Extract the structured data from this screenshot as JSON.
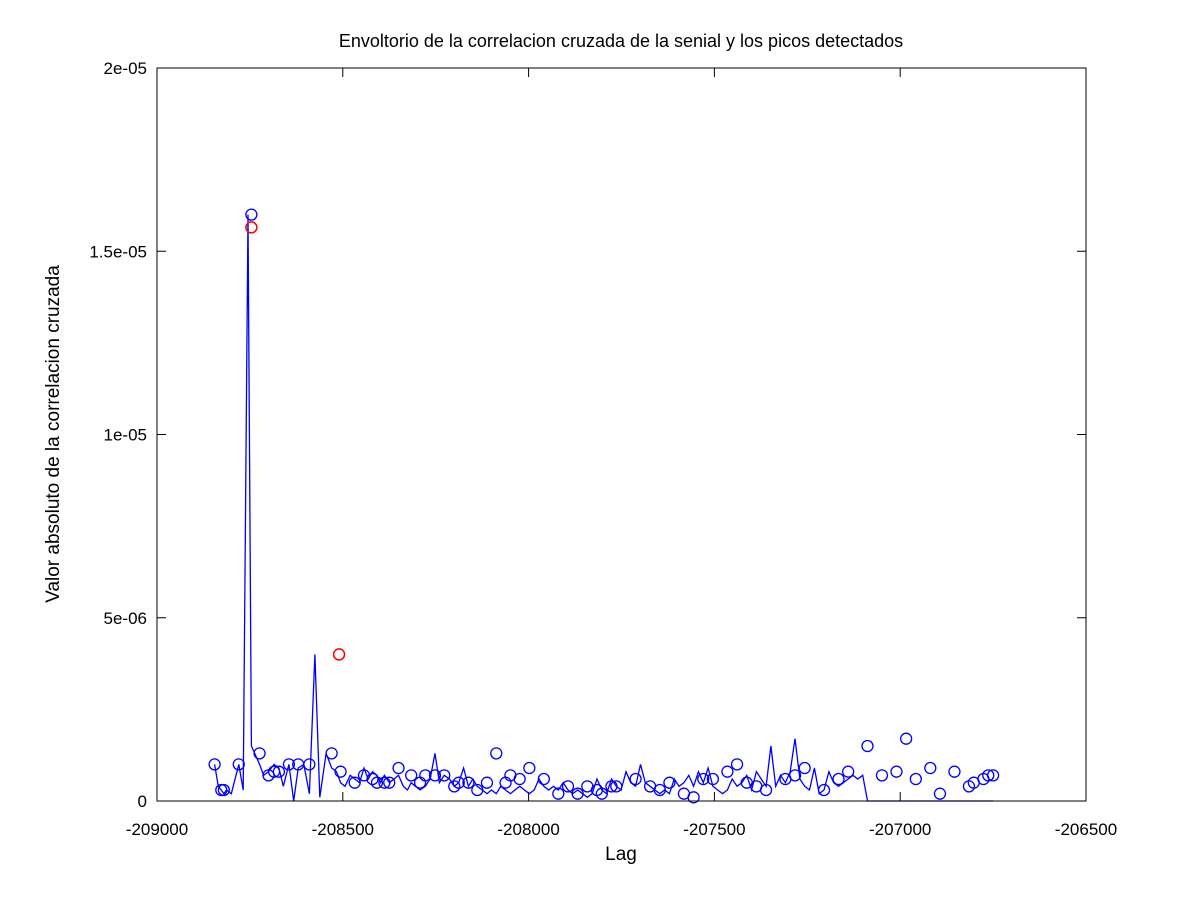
{
  "chart_data": {
    "type": "line",
    "title": "Envoltorio de la correlacion cruzada de la senial y los picos detectados",
    "xlabel": "Lag",
    "ylabel": "Valor absoluto de la correlacion cruzada",
    "xlim": [
      -209000,
      -206500
    ],
    "ylim": [
      0,
      2e-05
    ],
    "xticks": [
      -209000,
      -208500,
      -208000,
      -207500,
      -207000,
      -206500
    ],
    "xtick_labels": [
      "-209000",
      "-208500",
      "-208000",
      "-207500",
      "-207000",
      "-206500"
    ],
    "yticks": [
      0,
      5e-06,
      1e-05,
      1.5e-05,
      2e-05
    ],
    "ytick_labels": [
      "0",
      "5e-06",
      "1e-05",
      "1.5e-05",
      "2e-05"
    ],
    "grid": false,
    "colors": {
      "line": "#0000ff",
      "marker": "#0000ff",
      "highlight": "#ff0000"
    },
    "series": [
      {
        "x": [
          -208845,
          -208835,
          -208827,
          -208820,
          -208813,
          -208800,
          -208780,
          -208768,
          -208755,
          -208746,
          -208737,
          -208724,
          -208713,
          -208700,
          -208685,
          -208672,
          -208660,
          -208645,
          -208632,
          -208620,
          -208605,
          -208590,
          -208575,
          -208562,
          -208545,
          -208530,
          -208517,
          -208506,
          -208494,
          -208480,
          -208468,
          -208455,
          -208443,
          -208432,
          -208420,
          -208408,
          -208398,
          -208388,
          -208375,
          -208362,
          -208350,
          -208337,
          -208326,
          -208316,
          -208305,
          -208292,
          -208278,
          -208265,
          -208252,
          -208240,
          -208227,
          -208213,
          -208200,
          -208188,
          -208175,
          -208162,
          -208150,
          -208138,
          -208125,
          -208112,
          -208100,
          -208087,
          -208075,
          -208062,
          -208049,
          -208037,
          -208024,
          -208011,
          -207998,
          -207985,
          -207972,
          -207959,
          -207946,
          -207933,
          -207920,
          -207907,
          -207894,
          -207881,
          -207868,
          -207855,
          -207842,
          -207829,
          -207816,
          -207803,
          -207790,
          -207777,
          -207764,
          -207751,
          -207738,
          -207725,
          -207712,
          -207699,
          -207686,
          -207673,
          -207660,
          -207647,
          -207634,
          -207621,
          -207608,
          -207595,
          -207582,
          -207569,
          -207556,
          -207543,
          -207530,
          -207517,
          -207504,
          -207491,
          -207478,
          -207465,
          -207452,
          -207439,
          -207426,
          -207413,
          -207400,
          -207387,
          -207374,
          -207361,
          -207348,
          -207335,
          -207322,
          -207309,
          -207296,
          -207283,
          -207270,
          -207257,
          -207244,
          -207231,
          -207218,
          -207205,
          -207192,
          -207179,
          -207166,
          -207153,
          -207140,
          -207127,
          -207114,
          -207101,
          -207088,
          -207075,
          -207062,
          -207049,
          -207036,
          -207023,
          -207010,
          -206997,
          -206984,
          -206971,
          -206958,
          -206945,
          -206932,
          -206919,
          -206906,
          -206893,
          -206880,
          -206867,
          -206854,
          -206841,
          -206828,
          -206815,
          -206802,
          -206789,
          -206776,
          -206763,
          -206750
        ],
        "y": [
          1e-06,
          4e-07,
          3e-07,
          2e-07,
          3e-07,
          2e-07,
          1e-06,
          3e-07,
          1.6e-05,
          1.5e-06,
          1.3e-06,
          1e-06,
          7e-07,
          8e-07,
          1e-06,
          9e-07,
          4e-07,
          1e-06,
          0,
          9e-07,
          1e-06,
          2e-07,
          4e-06,
          1e-07,
          1.3e-06,
          9e-07,
          8e-07,
          5e-07,
          4e-07,
          7e-07,
          6e-07,
          5e-07,
          9e-07,
          6e-07,
          8e-07,
          7e-07,
          5e-07,
          7e-07,
          5e-07,
          6e-07,
          7e-07,
          4e-07,
          3e-07,
          5e-07,
          4e-07,
          3e-07,
          4e-07,
          6e-07,
          1.3e-06,
          5e-07,
          7e-07,
          6e-07,
          4e-07,
          5e-07,
          9e-07,
          4e-07,
          6e-07,
          4e-07,
          3e-07,
          2e-07,
          3e-07,
          2e-07,
          4e-07,
          3e-07,
          2e-07,
          3e-07,
          4e-07,
          3e-07,
          2e-07,
          3e-07,
          6e-07,
          4e-07,
          3e-07,
          4e-07,
          3e-07,
          5e-07,
          3e-07,
          2e-07,
          3e-07,
          2e-07,
          1e-07,
          2e-07,
          6e-07,
          3e-07,
          2e-07,
          6e-07,
          4e-07,
          3e-07,
          8e-07,
          5e-07,
          4e-07,
          1e-06,
          5e-07,
          4e-07,
          3e-07,
          2e-07,
          3e-07,
          2e-07,
          6e-07,
          4e-07,
          5e-07,
          7e-07,
          4e-07,
          8e-07,
          5e-07,
          9e-07,
          4e-07,
          3e-07,
          2e-07,
          3e-07,
          6e-07,
          4e-07,
          5e-07,
          7e-07,
          3e-07,
          8e-07,
          6e-07,
          4e-07,
          1.5e-06,
          4e-07,
          7e-07,
          5e-07,
          8e-07,
          1.7e-06,
          6e-07,
          4e-07,
          3e-07,
          9e-07,
          2e-07,
          3e-07,
          8e-07,
          5e-07,
          4e-07,
          5e-07,
          6e-07,
          7e-07,
          6e-07,
          7e-07,
          0,
          0,
          0,
          0,
          0,
          0,
          0,
          0,
          0,
          0,
          0,
          0,
          0,
          0,
          0,
          0,
          0,
          0,
          0,
          0,
          0,
          0,
          0,
          0,
          0,
          0,
          0
        ]
      }
    ],
    "peaks": {
      "x": [
        -208845,
        -208827,
        -208820,
        -208780,
        -208746,
        -208724,
        -208700,
        -208685,
        -208672,
        -208645,
        -208620,
        -208590,
        -208530,
        -208506,
        -208468,
        -208443,
        -208420,
        -208408,
        -208388,
        -208375,
        -208350,
        -208316,
        -208292,
        -208278,
        -208252,
        -208227,
        -208200,
        -208188,
        -208162,
        -208138,
        -208112,
        -208087,
        -208062,
        -208049,
        -208024,
        -207998,
        -207959,
        -207920,
        -207894,
        -207868,
        -207842,
        -207816,
        -207803,
        -207777,
        -207764,
        -207712,
        -207673,
        -207647,
        -207621,
        -207582,
        -207556,
        -207530,
        -207504,
        -207465,
        -207439,
        -207413,
        -207387,
        -207361,
        -207309,
        -207283,
        -207257,
        -207205,
        -207166,
        -207140,
        -207088,
        -207049,
        -207010,
        -206984,
        -206958,
        -206919,
        -206893,
        -206854,
        -206815,
        -206802,
        -206776,
        -206763,
        -206750
      ],
      "y": [
        1e-06,
        3e-07,
        3e-07,
        1e-06,
        1.6e-05,
        1.3e-06,
        7e-07,
        8e-07,
        8e-07,
        1e-06,
        1e-06,
        1e-06,
        1.3e-06,
        8e-07,
        5e-07,
        7e-07,
        6e-07,
        5e-07,
        5e-07,
        5e-07,
        9e-07,
        7e-07,
        5e-07,
        7e-07,
        7e-07,
        7e-07,
        4e-07,
        5e-07,
        5e-07,
        3e-07,
        5e-07,
        1.3e-06,
        5e-07,
        7e-07,
        6e-07,
        9e-07,
        6e-07,
        2e-07,
        4e-07,
        2e-07,
        4e-07,
        3e-07,
        2e-07,
        4e-07,
        4e-07,
        6e-07,
        4e-07,
        3e-07,
        5e-07,
        2e-07,
        1e-07,
        6e-07,
        6e-07,
        8e-07,
        1e-06,
        5e-07,
        4e-07,
        3e-07,
        6e-07,
        7e-07,
        9e-07,
        3e-07,
        6e-07,
        8e-07,
        1.5e-06,
        7e-07,
        8e-07,
        1.7e-06,
        6e-07,
        9e-07,
        2e-07,
        8e-07,
        4e-07,
        5e-07,
        6e-07,
        7e-07,
        7e-07
      ]
    },
    "detected_peaks": {
      "x": [
        -208746,
        -208510
      ],
      "y": [
        1.565e-05,
        4e-06
      ]
    }
  }
}
